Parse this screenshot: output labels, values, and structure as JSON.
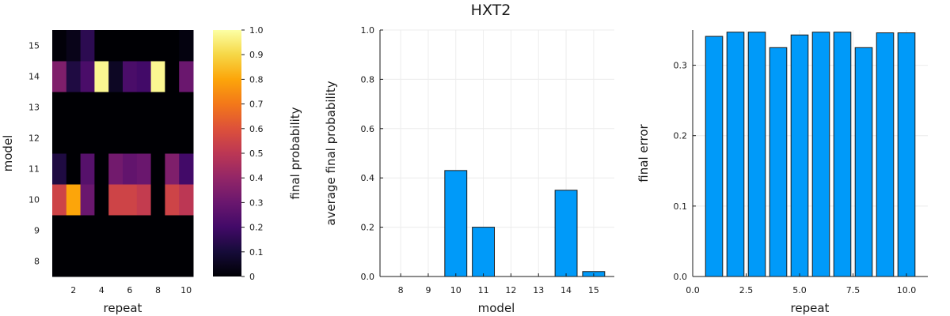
{
  "figure": {
    "title": "HXT2"
  },
  "chart_data": [
    {
      "type": "heatmap",
      "xlabel": "repeat",
      "ylabel": "model",
      "x": [
        1,
        2,
        3,
        4,
        5,
        6,
        7,
        8,
        9,
        10
      ],
      "y": [
        8,
        9,
        10,
        11,
        12,
        13,
        14,
        15
      ],
      "x_ticks": [
        2,
        4,
        6,
        8,
        10
      ],
      "y_ticks": [
        8,
        9,
        10,
        11,
        12,
        13,
        14,
        15
      ],
      "z": [
        [
          0,
          0,
          0,
          0,
          0,
          0,
          0,
          0,
          0,
          0
        ],
        [
          0,
          0,
          0,
          0,
          0,
          0,
          0,
          0,
          0,
          0
        ],
        [
          0.55,
          0.8,
          0.3,
          0,
          0.55,
          0.55,
          0.52,
          0,
          0.55,
          0.5
        ],
        [
          0.12,
          0,
          0.25,
          0,
          0.32,
          0.28,
          0.3,
          0,
          0.35,
          0.2
        ],
        [
          0,
          0,
          0,
          0,
          0,
          0,
          0,
          0,
          0,
          0
        ],
        [
          0,
          0,
          0,
          0,
          0,
          0,
          0,
          0,
          0,
          0
        ],
        [
          0.35,
          0.12,
          0.22,
          0.98,
          0.06,
          0.22,
          0.2,
          0.98,
          0,
          0.3
        ],
        [
          0.01,
          0.04,
          0.15,
          0,
          0,
          0,
          0,
          0,
          0,
          0.02
        ]
      ],
      "colorbar": {
        "label": "final probability",
        "range": [
          0,
          1
        ],
        "ticks": [
          "0",
          "0.1",
          "0.2",
          "0.3",
          "0.4",
          "0.5",
          "0.6",
          "0.7",
          "0.8",
          "0.9",
          "1.0"
        ],
        "colormap": "inferno"
      }
    },
    {
      "type": "bar",
      "xlabel": "model",
      "ylabel": "average final probability",
      "categories": [
        "8",
        "9",
        "10",
        "11",
        "12",
        "13",
        "14",
        "15"
      ],
      "values": [
        0,
        0,
        0.43,
        0.2,
        0,
        0,
        0.35,
        0.02
      ],
      "ylim": [
        0,
        1.0
      ],
      "y_ticks": [
        "0.0",
        "0.2",
        "0.4",
        "0.6",
        "0.8",
        "1.0"
      ],
      "grid": true,
      "color": "#009af9"
    },
    {
      "type": "bar",
      "xlabel": "repeat",
      "ylabel": "final error",
      "x": [
        1,
        2,
        3,
        4,
        5,
        6,
        7,
        8,
        9,
        10
      ],
      "values": [
        0.341,
        0.347,
        0.347,
        0.325,
        0.343,
        0.347,
        0.347,
        0.325,
        0.346,
        0.346
      ],
      "xlim": [
        0,
        11
      ],
      "ylim": [
        0,
        0.35
      ],
      "x_ticks": [
        "0.0",
        "2.5",
        "5.0",
        "7.5",
        "10.0"
      ],
      "y_ticks": [
        "0.0",
        "0.1",
        "0.2",
        "0.3"
      ],
      "grid": true,
      "color": "#009af9"
    }
  ]
}
